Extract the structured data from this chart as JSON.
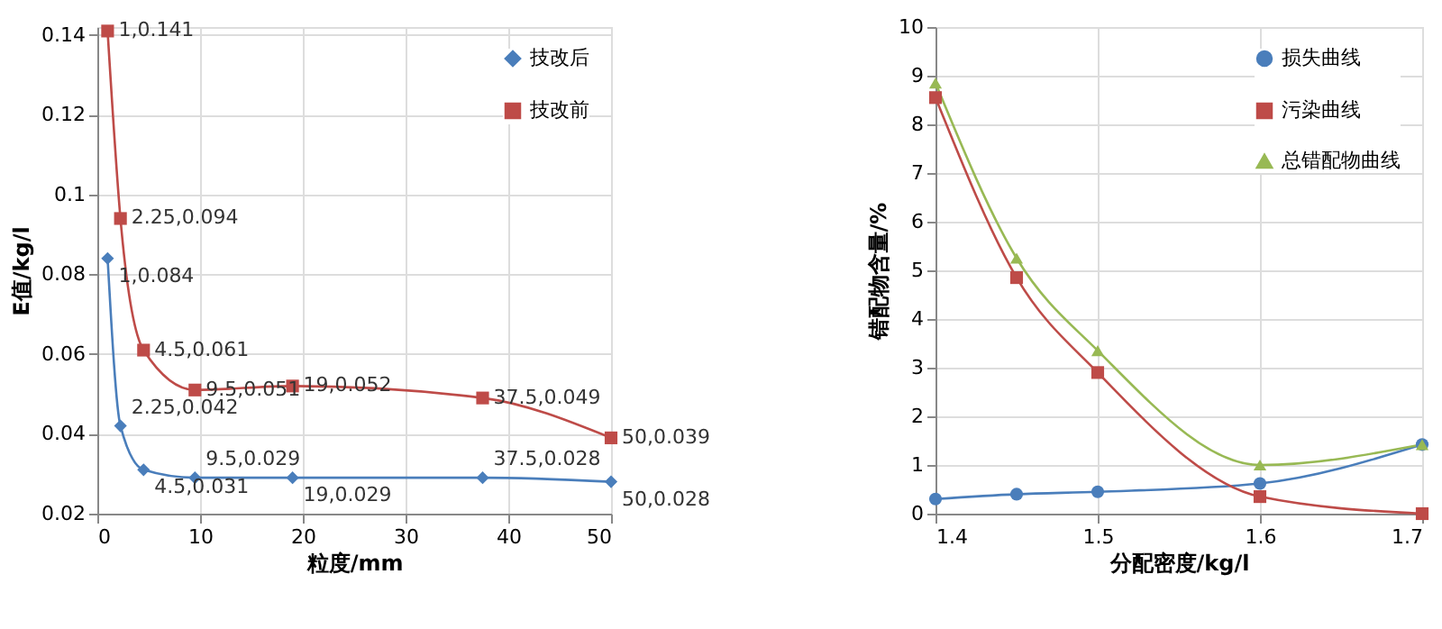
{
  "chart_data": [
    {
      "type": "line",
      "xlabel": "粒度/mm",
      "ylabel": "E值/kg/l",
      "x": [
        1,
        2.25,
        4.5,
        9.5,
        19,
        37.5,
        50
      ],
      "xlim": [
        0,
        50
      ],
      "xticks": [
        0,
        10,
        20,
        30,
        40,
        50
      ],
      "ylim": [
        0.02,
        0.142
      ],
      "yticks": [
        0.02,
        0.04,
        0.06,
        0.08,
        0.1,
        0.12,
        0.14
      ],
      "grid": true,
      "legend": "top right",
      "series": [
        {
          "name": "技改后",
          "color": "#4a7ebb",
          "marker": "diamond",
          "values": [
            0.084,
            0.042,
            0.031,
            0.029,
            0.029,
            0.029,
            0.028
          ],
          "value_labels": [
            "1,0.084",
            "2.25,0.042",
            "4.5,0.031",
            "9.5,0.029",
            "19,0.029",
            "37.5,0.028",
            "50,0.028"
          ]
        },
        {
          "name": "技改前",
          "color": "#be4b48",
          "marker": "square",
          "values": [
            0.141,
            0.094,
            0.061,
            0.051,
            0.052,
            0.049,
            0.039
          ],
          "value_labels": [
            "1,0.141",
            "2.25,0.094",
            "4.5,0.061",
            "9.5,0.051",
            "19,0.052",
            "37.5,0.049",
            "50,0.039"
          ]
        }
      ]
    },
    {
      "type": "line",
      "xlabel": "分配密度/kg/l",
      "ylabel": "错配物含量/%",
      "x": [
        1.4,
        1.45,
        1.5,
        1.6,
        1.7
      ],
      "xlim": [
        1.4,
        1.7
      ],
      "xticks": [
        1.4,
        1.5,
        1.6,
        1.7
      ],
      "ylim": [
        0,
        10
      ],
      "yticks": [
        0,
        1,
        2,
        3,
        4,
        5,
        6,
        7,
        8,
        9,
        10
      ],
      "grid": true,
      "legend": "top right",
      "series": [
        {
          "name": "损失曲线",
          "color": "#4a7ebb",
          "marker": "circle",
          "values": [
            0.3,
            0.4,
            0.45,
            0.62,
            1.42
          ]
        },
        {
          "name": "污染曲线",
          "color": "#be4b48",
          "marker": "square",
          "values": [
            8.55,
            4.85,
            2.9,
            0.35,
            0
          ]
        },
        {
          "name": "总错配物曲线",
          "color": "#98b954",
          "marker": "triangle",
          "values": [
            8.85,
            5.25,
            3.35,
            1.0,
            1.42
          ]
        }
      ]
    }
  ]
}
